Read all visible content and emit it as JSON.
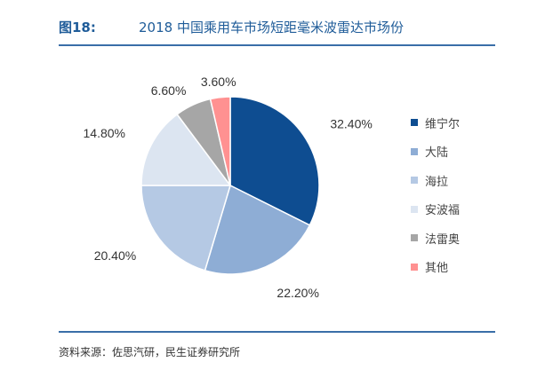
{
  "header": {
    "figure_label": "图18:",
    "title": "2018 中国乘用车市场短距毫米波雷达市场份"
  },
  "source": "资料来源：佐思汽研，民生证券研究所",
  "chart_data": {
    "type": "pie",
    "title": "2018 中国乘用车市场短距毫米波雷达市场份",
    "start": "12 o'clock, clockwise",
    "legend_position": "right",
    "slices": [
      {
        "name": "维宁尔",
        "value": 32.4,
        "label": "32.40%",
        "color": "#0e4d91"
      },
      {
        "name": "大陆",
        "value": 22.2,
        "label": "22.20%",
        "color": "#8eadd5"
      },
      {
        "name": "海拉",
        "value": 20.4,
        "label": "20.40%",
        "color": "#b5c9e4"
      },
      {
        "name": "安波福",
        "value": 14.8,
        "label": "14.80%",
        "color": "#dce5f1"
      },
      {
        "name": "法雷奥",
        "value": 6.6,
        "label": "6.60%",
        "color": "#a6a6a6"
      },
      {
        "name": "其他",
        "value": 3.6,
        "label": "3.60%",
        "color": "#ff9191"
      }
    ]
  }
}
